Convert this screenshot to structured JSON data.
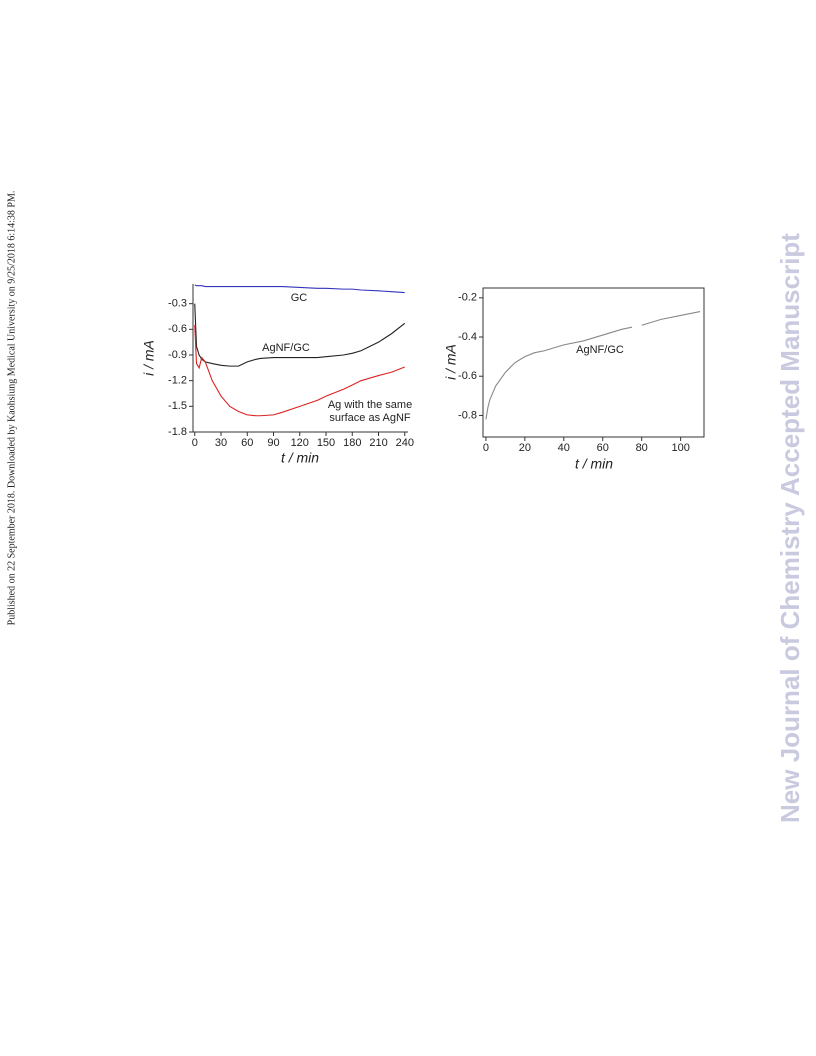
{
  "sidebar_text": "Published on 22 September 2018. Downloaded by Kaohsiung Medical University on 9/25/2018 6:14:38 PM.",
  "watermark": "New Journal of Chemistry Accepted Manuscript",
  "chart_data": [
    {
      "type": "line",
      "xlabel": "t / min",
      "ylabel": "i / mA",
      "x": [
        0,
        2,
        5,
        8,
        12,
        20,
        30,
        40,
        50,
        60,
        70,
        75,
        90,
        100,
        120,
        140,
        150,
        170,
        180,
        190,
        210,
        225,
        240
      ],
      "series": [
        {
          "color": "#3333bb",
          "values": [
            -0.08,
            -0.09,
            -0.09,
            -0.09,
            -0.1,
            -0.1,
            -0.1,
            -0.1,
            -0.1,
            -0.1,
            -0.1,
            -0.1,
            -0.1,
            -0.1,
            -0.11,
            -0.12,
            -0.12,
            -0.13,
            -0.13,
            -0.14,
            -0.15,
            -0.16,
            -0.17
          ]
        },
        {
          "color": "#222222",
          "values": [
            -0.3,
            -0.8,
            -0.9,
            -0.95,
            -0.98,
            -1.0,
            -1.02,
            -1.03,
            -1.03,
            -0.98,
            -0.95,
            -0.94,
            -0.93,
            -0.93,
            -0.93,
            -0.93,
            -0.92,
            -0.9,
            -0.88,
            -0.85,
            -0.75,
            -0.65,
            -0.53
          ]
        },
        {
          "color": "#dd2222",
          "values": [
            -0.55,
            -1.0,
            -1.05,
            -0.93,
            -0.98,
            -1.2,
            -1.38,
            -1.5,
            -1.56,
            -1.6,
            -1.61,
            -1.61,
            -1.6,
            -1.57,
            -1.5,
            -1.43,
            -1.38,
            -1.3,
            -1.25,
            -1.2,
            -1.14,
            -1.1,
            -1.04
          ]
        }
      ],
      "annotations": [
        {
          "text": "GC",
          "color": "#3333bb"
        },
        {
          "text": "AgNF/GC",
          "color": "#222222"
        },
        {
          "text": "Ag with the same",
          "color": "#dd2222"
        },
        {
          "text": "surface as AgNF",
          "color": "#dd2222"
        }
      ],
      "xlim": [
        -2,
        243.7
      ],
      "xticks": [
        0,
        30,
        60,
        90,
        120,
        150,
        180,
        210,
        240
      ],
      "ylim": [
        -1.8,
        -0.07
      ],
      "yticks": [
        -0.3,
        -0.6,
        -0.9,
        -1.2,
        -1.5,
        -1.8
      ],
      "grid": false,
      "frame": false
    },
    {
      "type": "line",
      "xlabel": "t / min",
      "ylabel": "i / mA",
      "x": [
        0,
        1,
        2,
        5,
        10,
        15,
        20,
        25,
        30,
        40,
        50,
        60,
        70,
        75,
        77,
        80,
        90,
        100,
        110
      ],
      "series": [
        {
          "color": "#888888",
          "values": [
            -0.82,
            -0.76,
            -0.72,
            -0.65,
            -0.58,
            -0.53,
            -0.5,
            -0.48,
            -0.47,
            -0.44,
            -0.42,
            -0.39,
            -0.36,
            -0.35,
            null,
            -0.34,
            -0.31,
            -0.29,
            -0.27
          ]
        }
      ],
      "annotations": [
        {
          "text": "AgNF/GC",
          "color": "#222222"
        }
      ],
      "xlim": [
        -1.5,
        112
      ],
      "xticks": [
        0,
        20,
        40,
        60,
        80,
        100
      ],
      "ylim": [
        -0.91,
        -0.15
      ],
      "yticks": [
        -0.2,
        -0.4,
        -0.6,
        -0.8
      ],
      "grid": false,
      "frame": true
    }
  ]
}
